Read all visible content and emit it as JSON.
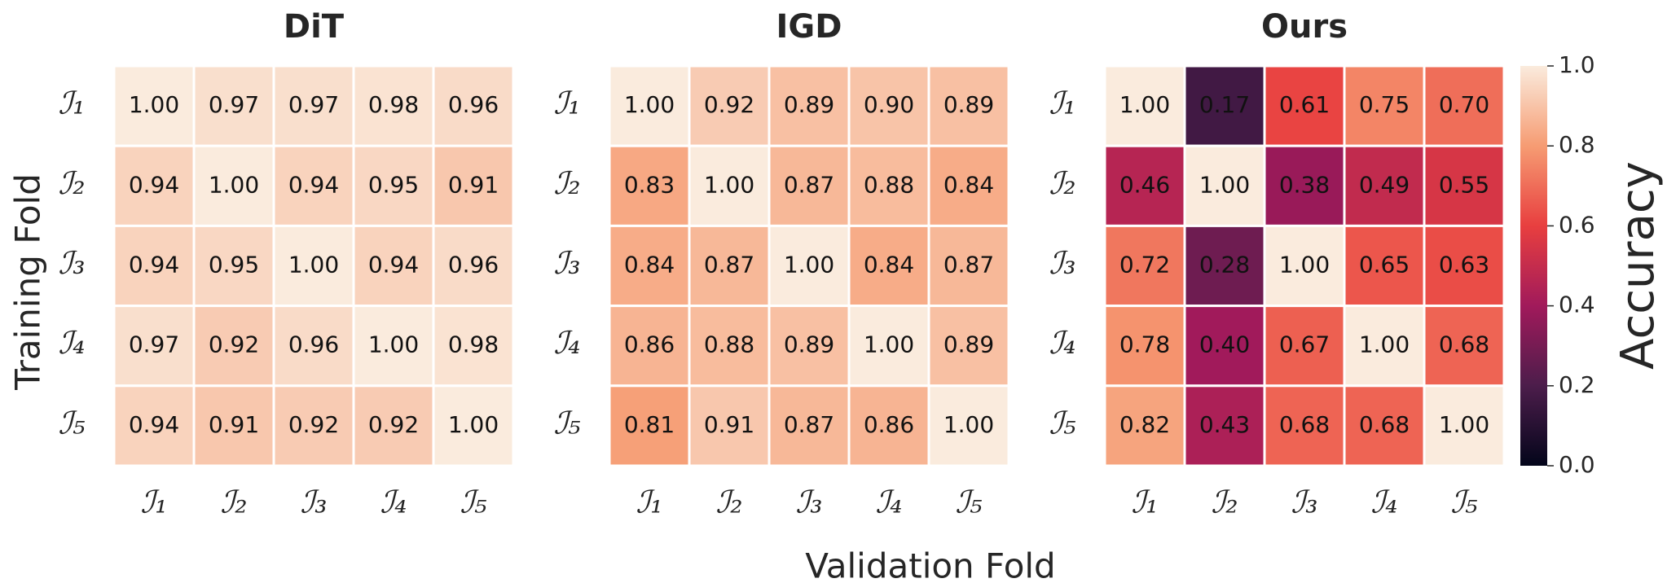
{
  "figure": {
    "xlabel": "Validation Fold",
    "ylabel": "Training Fold",
    "colorbar": {
      "label": "Accuracy",
      "lim": [
        0,
        1
      ],
      "ticks": [
        {
          "value": 0,
          "label": "0.0"
        },
        0.2,
        0.4,
        0.6,
        0.8,
        {
          "value": 1,
          "label": "1.0"
        }
      ],
      "cmap": [
        "#03051a",
        "#4c1d4b",
        "#a11a5b",
        "#e83f3f",
        "#f69c73",
        "#faebdd"
      ]
    }
  },
  "chart_data": [
    {
      "type": "heatmap",
      "title": "DiT",
      "x": [
        "ℐ₁",
        "ℐ₂",
        "ℐ₃",
        "ℐ₄",
        "ℐ₅"
      ],
      "y": [
        "ℐ₁",
        "ℐ₂",
        "ℐ₃",
        "ℐ₄",
        "ℐ₅"
      ],
      "values": [
        [
          1,
          0.97,
          0.97,
          0.98,
          0.96
        ],
        [
          0.94,
          1,
          0.94,
          0.95,
          0.91
        ],
        [
          0.94,
          0.95,
          1,
          0.94,
          0.96
        ],
        [
          0.97,
          0.92,
          0.96,
          1,
          0.98
        ],
        [
          0.94,
          0.91,
          0.92,
          0.92,
          1
        ]
      ],
      "value_labels": [
        [
          "1.00",
          "0.97",
          "0.97",
          "0.98",
          "0.96"
        ],
        [
          "0.94",
          "1.00",
          "0.94",
          "0.95",
          "0.91"
        ],
        [
          "0.94",
          "0.95",
          "1.00",
          "0.94",
          "0.96"
        ],
        [
          "0.97",
          "0.92",
          "0.96",
          "1.00",
          "0.98"
        ],
        [
          "0.94",
          "0.91",
          "0.92",
          "0.92",
          "1.00"
        ]
      ]
    },
    {
      "type": "heatmap",
      "title": "IGD",
      "x": [
        "ℐ₁",
        "ℐ₂",
        "ℐ₃",
        "ℐ₄",
        "ℐ₅"
      ],
      "y": [
        "ℐ₁",
        "ℐ₂",
        "ℐ₃",
        "ℐ₄",
        "ℐ₅"
      ],
      "values": [
        [
          1,
          0.92,
          0.89,
          0.9,
          0.89
        ],
        [
          0.83,
          1,
          0.87,
          0.88,
          0.84
        ],
        [
          0.84,
          0.87,
          1,
          0.84,
          0.87
        ],
        [
          0.86,
          0.88,
          0.89,
          1,
          0.89
        ],
        [
          0.81,
          0.91,
          0.87,
          0.86,
          1
        ]
      ],
      "value_labels": [
        [
          "1.00",
          "0.92",
          "0.89",
          "0.90",
          "0.89"
        ],
        [
          "0.83",
          "1.00",
          "0.87",
          "0.88",
          "0.84"
        ],
        [
          "0.84",
          "0.87",
          "1.00",
          "0.84",
          "0.87"
        ],
        [
          "0.86",
          "0.88",
          "0.89",
          "1.00",
          "0.89"
        ],
        [
          "0.81",
          "0.91",
          "0.87",
          "0.86",
          "1.00"
        ]
      ]
    },
    {
      "type": "heatmap",
      "title": "Ours",
      "x": [
        "ℐ₁",
        "ℐ₂",
        "ℐ₃",
        "ℐ₄",
        "ℐ₅"
      ],
      "y": [
        "ℐ₁",
        "ℐ₂",
        "ℐ₃",
        "ℐ₄",
        "ℐ₅"
      ],
      "values": [
        [
          1,
          0.17,
          0.61,
          0.75,
          0.7
        ],
        [
          0.46,
          1,
          0.38,
          0.49,
          0.55
        ],
        [
          0.72,
          0.28,
          1,
          0.65,
          0.63
        ],
        [
          0.78,
          0.4,
          0.67,
          1,
          0.68
        ],
        [
          0.82,
          0.43,
          0.68,
          0.68,
          1
        ]
      ],
      "value_labels": [
        [
          "1.00",
          "0.17",
          "0.61",
          "0.75",
          "0.70"
        ],
        [
          "0.46",
          "1.00",
          "0.38",
          "0.49",
          "0.55"
        ],
        [
          "0.72",
          "0.28",
          "1.00",
          "0.65",
          "0.63"
        ],
        [
          "0.78",
          "0.40",
          "0.67",
          "1.00",
          "0.68"
        ],
        [
          "0.82",
          "0.43",
          "0.68",
          "0.68",
          "1.00"
        ]
      ]
    }
  ]
}
